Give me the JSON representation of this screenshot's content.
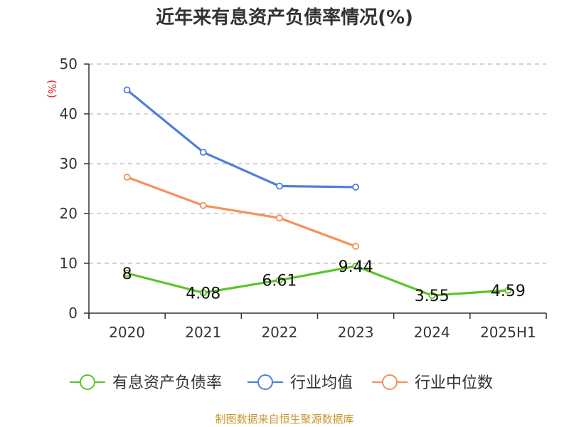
{
  "chart_data": {
    "type": "line",
    "title": "近年来有息资产负债率情况(%)",
    "ylabel": "(%)",
    "categories": [
      "2020",
      "2021",
      "2022",
      "2023",
      "2024",
      "2025H1"
    ],
    "ylim": [
      0,
      50
    ],
    "yticks": [
      0,
      10,
      20,
      30,
      40,
      50
    ],
    "grid": true,
    "legend_position": "bottom",
    "series": [
      {
        "name": "有息资产负债率",
        "color": "#5cc42a",
        "values": [
          8,
          4.08,
          6.61,
          9.44,
          3.55,
          4.59
        ],
        "labels": [
          "8",
          "4.08",
          "6.61",
          "9.44",
          "3.55",
          "4.59"
        ]
      },
      {
        "name": "行业均值",
        "color": "#4e7fdb",
        "values": [
          44.8,
          32.3,
          25.5,
          25.3,
          null,
          null
        ]
      },
      {
        "name": "行业中位数",
        "color": "#f5915a",
        "values": [
          27.3,
          21.6,
          19.1,
          13.4,
          null,
          null
        ]
      }
    ]
  },
  "footer": {
    "source": "制图数据来自恒生聚源数据库",
    "color": "#c8962e"
  },
  "colors": {
    "axis": "#333333",
    "grid": "#bbbbbb",
    "ylabel": "#e02020"
  }
}
